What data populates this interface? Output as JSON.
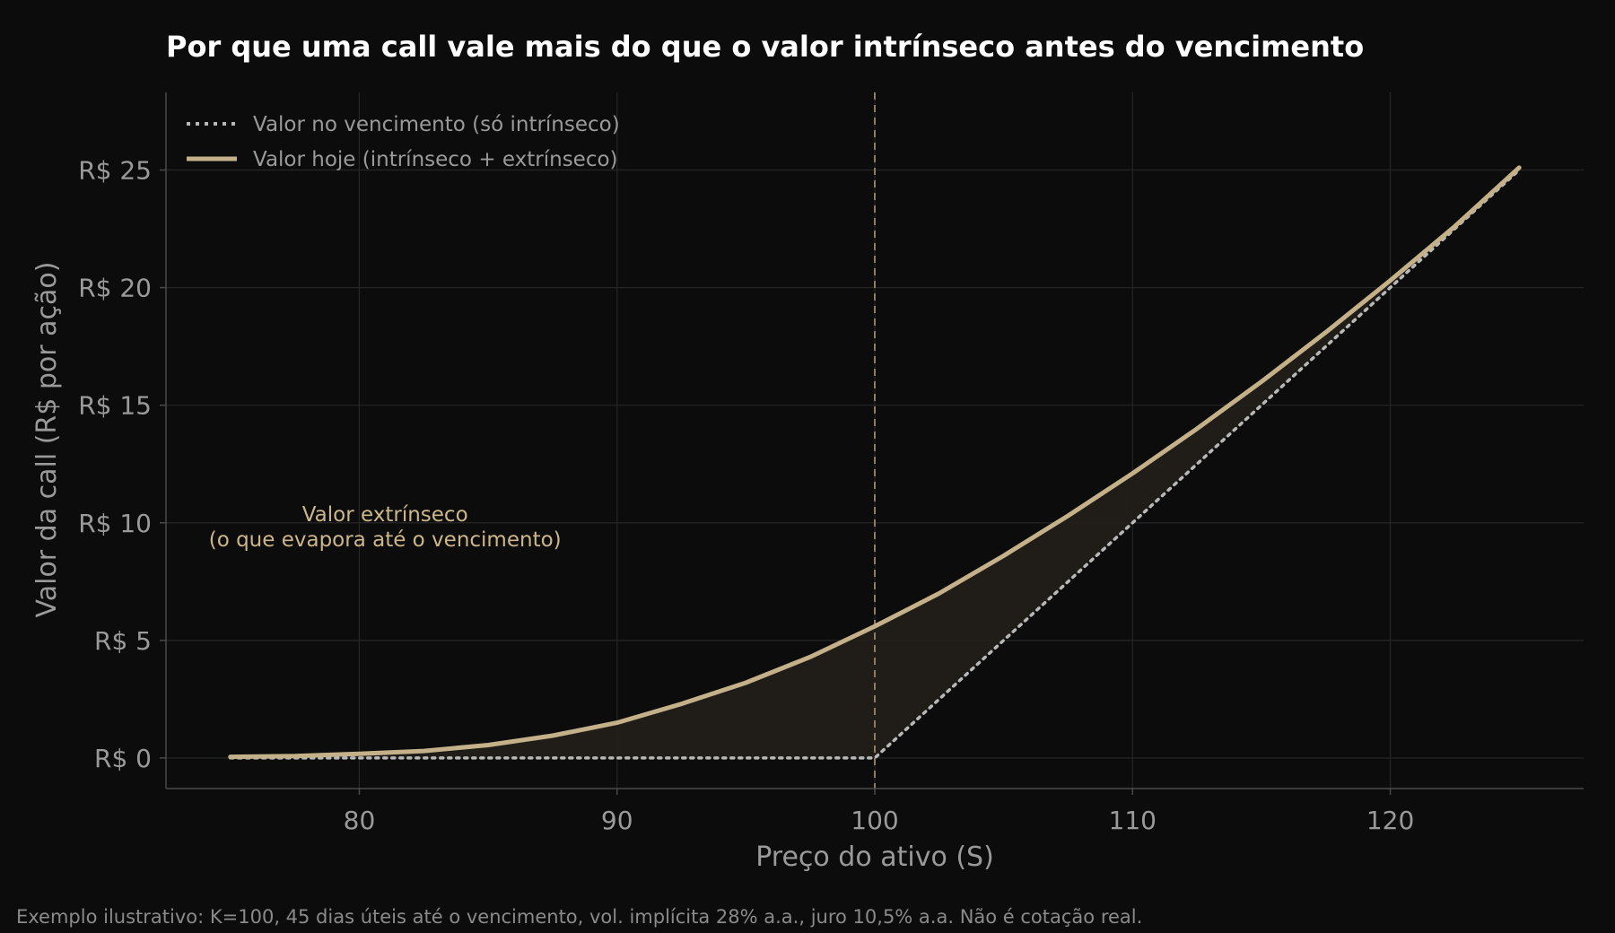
{
  "chart_data": {
    "type": "line",
    "title": "Por que uma call vale mais do que o valor intrínseco antes do vencimento",
    "xlabel": "Preço do ativo (S)",
    "ylabel": "Valor da call (R$ por ação)",
    "xlim": [
      72.5,
      127.5
    ],
    "ylim": [
      -1.3,
      28.3
    ],
    "x_ticks": [
      80,
      90,
      100,
      110,
      120
    ],
    "x_tick_labels": [
      "80",
      "90",
      "100",
      "110",
      "120"
    ],
    "y_ticks": [
      0,
      5,
      10,
      15,
      20,
      25
    ],
    "y_tick_labels": [
      "R$ 0",
      "R$ 5",
      "R$ 10",
      "R$ 15",
      "R$ 20",
      "R$ 25"
    ],
    "grid": true,
    "legend_position": "top-left",
    "strike": 100,
    "series": [
      {
        "name": "Valor no vencimento (só intrínseco)",
        "style": "dotted",
        "color": "#b8b8b8",
        "points": [
          [
            75,
            0
          ],
          [
            80,
            0
          ],
          [
            85,
            0
          ],
          [
            90,
            0
          ],
          [
            95,
            0
          ],
          [
            100,
            0
          ],
          [
            105,
            5
          ],
          [
            110,
            10
          ],
          [
            115,
            15
          ],
          [
            120,
            20
          ],
          [
            125,
            25
          ]
        ]
      },
      {
        "name": "Valor hoje (intrínseco + extrínseco)",
        "style": "solid",
        "color": "#c4b18a",
        "points": [
          [
            75,
            0.05
          ],
          [
            77.5,
            0.08
          ],
          [
            80,
            0.18
          ],
          [
            82.5,
            0.3
          ],
          [
            85,
            0.55
          ],
          [
            87.5,
            0.95
          ],
          [
            90,
            1.5
          ],
          [
            92.5,
            2.3
          ],
          [
            95,
            3.2
          ],
          [
            97.5,
            4.3
          ],
          [
            100,
            5.6
          ],
          [
            102.5,
            7.0
          ],
          [
            105,
            8.6
          ],
          [
            107.5,
            10.3
          ],
          [
            110,
            12.1
          ],
          [
            112.5,
            14.0
          ],
          [
            115,
            16.0
          ],
          [
            117.5,
            18.1
          ],
          [
            120,
            20.3
          ],
          [
            122.5,
            22.6
          ],
          [
            125,
            25.1
          ]
        ]
      }
    ],
    "annotation": {
      "line1": "Valor extrínseco",
      "line2": "(o que evapora até o vencimento)",
      "x": 81,
      "y": 10
    },
    "colors": {
      "background": "#0c0c0c",
      "grid": "#262626",
      "strike_line": "#8c7d62",
      "fill": "#221f19"
    }
  },
  "footnote": "Exemplo ilustrativo: K=100, 45 dias úteis até o vencimento, vol. implícita 28% a.a., juro 10,5% a.a. Não é cotação real."
}
